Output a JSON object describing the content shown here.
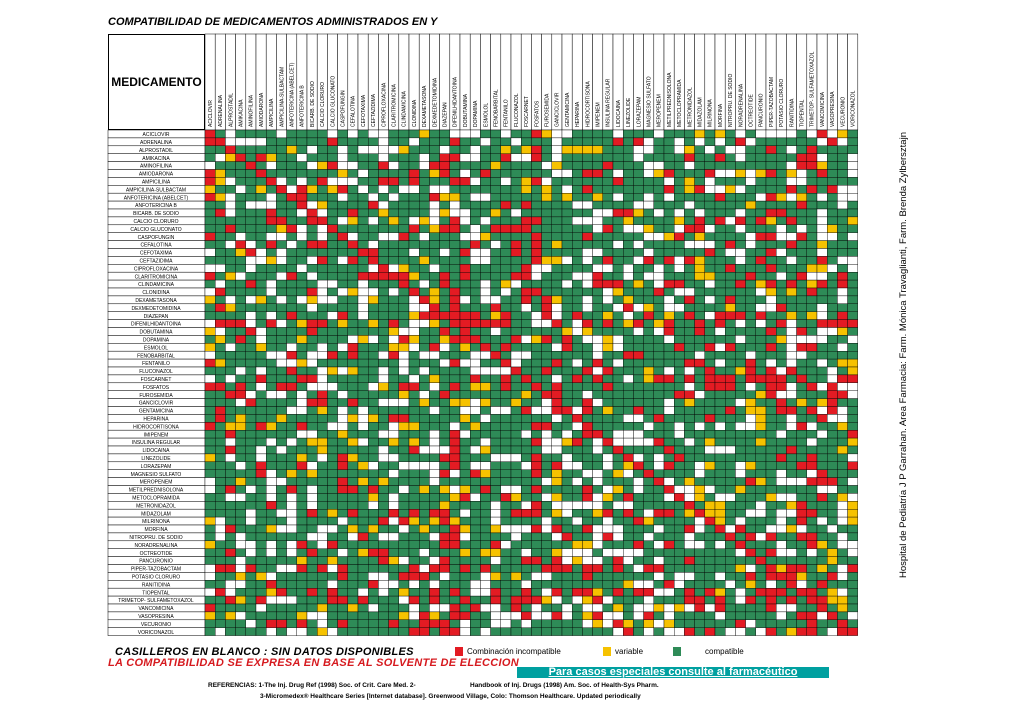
{
  "title": "COMPATIBILIDAD DE MEDICAMENTOS ADMINISTRADOS EN Y",
  "header_label": "MEDICAMENTO",
  "drugs": [
    "ACICLOVIR",
    "ADRENALINA",
    "ALPROSTADIL",
    "AMIKACINA",
    "AMINOFILINA",
    "AMIODARONA",
    "AMPICILINA",
    "AMPICILINA-SULBACTAM",
    "ANFOTERICINA (ABELCET)",
    "ANFOTERICINA B",
    "BICARB. DE SODIO",
    "CALCIO CLORURO",
    "CALCIO GLUCONATO",
    "CASPOFUNGIN",
    "CEFALOTINA",
    "CEFOTAXIMA",
    "CEFTAZIDIMA",
    "CIPROFLOXACINA",
    "CLARITROMICINA",
    "CLINDAMICINA",
    "CLONIDINA",
    "DEXAMETASONA",
    "DEXMEDETOMIDINA",
    "DIAZEPAN",
    "DIFENILHIDANTOINA",
    "DOBUTAMINA",
    "DOPAMINA",
    "ESMOLOL",
    "FENOBARBITAL",
    "FENTANILO",
    "FLUCONAZOL",
    "FOSCARNET",
    "FOSFATOS",
    "FUROSEMIDA",
    "GANCICLOVIR",
    "GENTAMICINA",
    "HEPARINA",
    "HIDROCORTISONA",
    "IMIPENEM",
    "INSULINA REGULAR",
    "LIDOCAINA",
    "LINEZOLIDE",
    "LORAZEPAM",
    "MAGNESIO SULFATO",
    "MEROPENEM",
    "METILPREDNISOLONA",
    "METOCLOPRAMIDA",
    "METRONIDAZOL",
    "MIDAZOLAM",
    "MILRINONA",
    "MORFINA",
    "NITROPRU. DE SODIO",
    "NORADRENALINA",
    "OCTREOTIDE",
    "PANCURONIO",
    "PIPER-TAZOBACTAM",
    "POTASIO CLORURO",
    "RANITIDINA",
    "TIOPENTAL",
    "TRIMETOP- SULFAMETOXAZOL",
    "VANCOMICINA",
    "VASOPRESINA",
    "VECURONIO",
    "VORICONAZOL"
  ],
  "legend": {
    "incompatible_label": "Combinación incompatible",
    "variable_label": "variable",
    "compatible_label": "compatible",
    "incompatible_color": "#e31b23",
    "variable_color": "#f6c200",
    "compatible_color": "#2e8b57",
    "blank_color": "#ffffff"
  },
  "blank_note": "CASILLEROS EN BLANCO :  SIN DATOS DISPONIBLES",
  "solvent_note": "LA COMPATIBILIDAD SE EXPRESA EN BASE AL SOLVENTE DE ELECCION",
  "pharmacist_note": "Para casos especiales consulte al farmacéutico",
  "references": {
    "line1": "REFERENCIAS: 1-The  Inj.  Drug Ref (1998) Soc. of Crit. Care Med. 2-",
    "line1b": "Handbook of Inj. Drugs (1998) Am. Soc. of Health-Sys Pharm.",
    "line2": "3-Micromedex® Healthcare Series [Internet database]. Greenwood Village, Colo: Thomson Healthcare. Updated periodically"
  },
  "side_credit": "Hospital de Pediatría J P Garrahan. Area Farmacia: Farm. Mónica Travaglianti, Farm. Brenda Zylbersztajn"
}
